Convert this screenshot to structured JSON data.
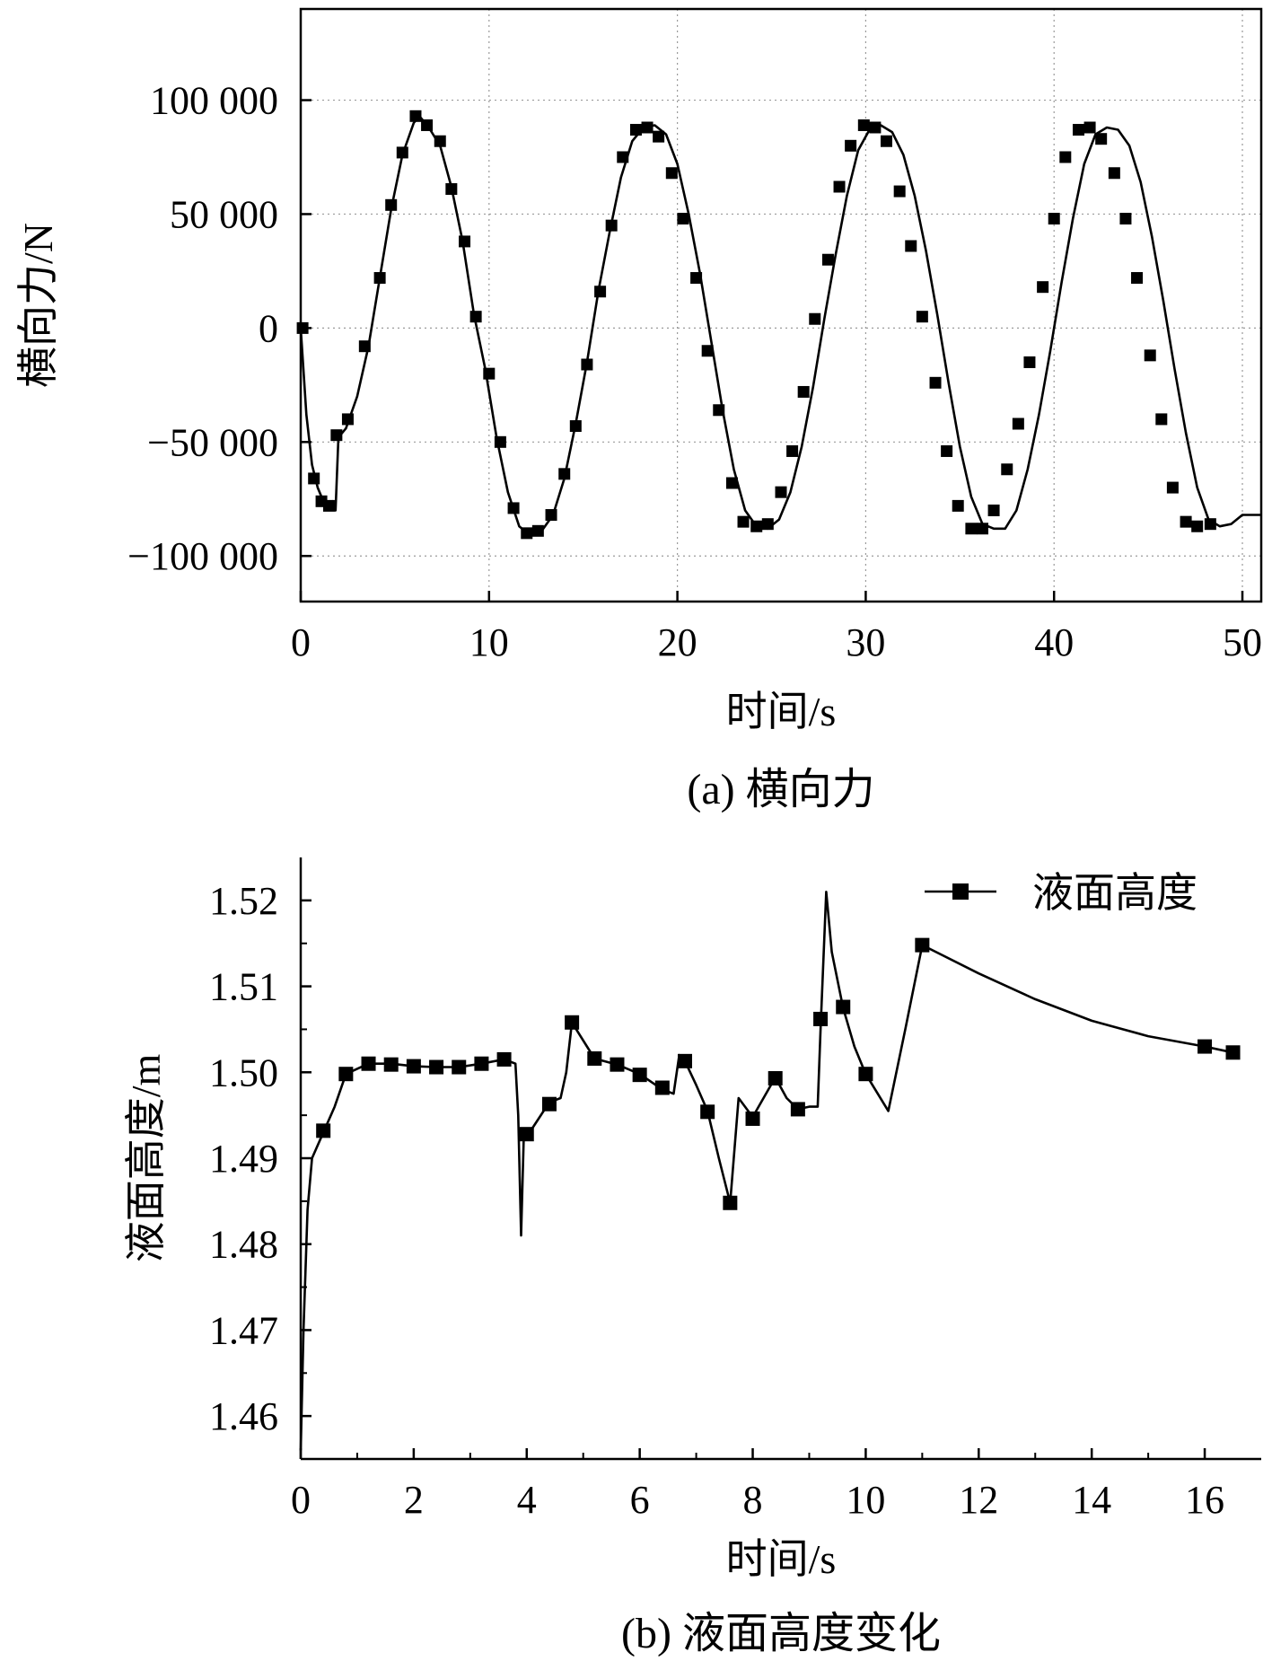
{
  "chart_data": [
    {
      "type": "line",
      "caption": "(a) 横向力",
      "xlabel": "时间/s",
      "ylabel": "横向力/N",
      "xlim": [
        0,
        51
      ],
      "ylim": [
        -120000,
        140000
      ],
      "x_ticks": [
        0,
        10,
        20,
        30,
        40,
        50
      ],
      "x_tick_labels": [
        "0",
        "10",
        "20",
        "30",
        "40",
        "50"
      ],
      "y_ticks": [
        100000,
        50000,
        0,
        -50000,
        -100000
      ],
      "y_tick_labels": [
        "100 000",
        "50 000",
        "0",
        "−50 000",
        "−100 000"
      ],
      "grid": true,
      "series": [
        {
          "color": "#000000",
          "marker": "square",
          "line_points": [
            [
              0,
              0
            ],
            [
              0.3,
              -38000
            ],
            [
              0.6,
              -60000
            ],
            [
              0.9,
              -70000
            ],
            [
              1.2,
              -76000
            ],
            [
              1.5,
              -78000
            ],
            [
              1.7,
              -76000
            ],
            [
              1.85,
              -80000
            ],
            [
              2.0,
              -48000
            ],
            [
              2.4,
              -44000
            ],
            [
              3.0,
              -30000
            ],
            [
              3.6,
              -8000
            ],
            [
              4.2,
              22000
            ],
            [
              4.8,
              52000
            ],
            [
              5.4,
              76000
            ],
            [
              6.0,
              90000
            ],
            [
              6.3,
              93000
            ],
            [
              6.8,
              88000
            ],
            [
              7.4,
              80000
            ],
            [
              8.0,
              62000
            ],
            [
              8.6,
              38000
            ],
            [
              9.2,
              6000
            ],
            [
              9.8,
              -18000
            ],
            [
              10.4,
              -48000
            ],
            [
              11.0,
              -72000
            ],
            [
              11.6,
              -87000
            ],
            [
              12.2,
              -91000
            ],
            [
              12.8,
              -89000
            ],
            [
              13.4,
              -82000
            ],
            [
              14.0,
              -66000
            ],
            [
              14.6,
              -42000
            ],
            [
              15.2,
              -15000
            ],
            [
              15.8,
              16000
            ],
            [
              16.4,
              42000
            ],
            [
              17.0,
              66000
            ],
            [
              17.6,
              82000
            ],
            [
              18.2,
              88000
            ],
            [
              18.8,
              89000
            ],
            [
              19.4,
              85000
            ],
            [
              20.0,
              72000
            ],
            [
              20.6,
              50000
            ],
            [
              21.2,
              24000
            ],
            [
              21.8,
              -6000
            ],
            [
              22.4,
              -36000
            ],
            [
              23.0,
              -62000
            ],
            [
              23.6,
              -80000
            ],
            [
              24.2,
              -87000
            ],
            [
              24.8,
              -88000
            ],
            [
              25.4,
              -84000
            ],
            [
              26.0,
              -72000
            ],
            [
              26.6,
              -52000
            ],
            [
              27.2,
              -26000
            ],
            [
              27.8,
              4000
            ],
            [
              28.4,
              32000
            ],
            [
              29.0,
              58000
            ],
            [
              29.6,
              78000
            ],
            [
              30.2,
              87000
            ],
            [
              30.8,
              89000
            ],
            [
              31.4,
              86000
            ],
            [
              32.0,
              76000
            ],
            [
              32.6,
              58000
            ],
            [
              33.2,
              34000
            ],
            [
              33.8,
              6000
            ],
            [
              34.4,
              -24000
            ],
            [
              35.0,
              -52000
            ],
            [
              35.6,
              -74000
            ],
            [
              36.2,
              -86000
            ],
            [
              36.8,
              -88000
            ],
            [
              37.4,
              -88000
            ],
            [
              38.0,
              -80000
            ],
            [
              38.6,
              -62000
            ],
            [
              39.2,
              -38000
            ],
            [
              39.8,
              -10000
            ],
            [
              40.4,
              20000
            ],
            [
              41.0,
              48000
            ],
            [
              41.6,
              72000
            ],
            [
              42.2,
              85000
            ],
            [
              42.8,
              88000
            ],
            [
              43.4,
              87000
            ],
            [
              44.0,
              80000
            ],
            [
              44.6,
              64000
            ],
            [
              45.2,
              40000
            ],
            [
              45.8,
              12000
            ],
            [
              46.4,
              -18000
            ],
            [
              47.0,
              -46000
            ],
            [
              47.6,
              -70000
            ],
            [
              48.2,
              -84000
            ],
            [
              48.8,
              -87000
            ],
            [
              49.4,
              -86000
            ],
            [
              50.0,
              -82000
            ],
            [
              51.0,
              -82000
            ]
          ],
          "marker_points": [
            [
              0.1,
              0
            ],
            [
              0.7,
              -66000
            ],
            [
              1.1,
              -76000
            ],
            [
              1.5,
              -78000
            ],
            [
              1.9,
              -47000
            ],
            [
              2.5,
              -40000
            ],
            [
              3.4,
              -8000
            ],
            [
              4.2,
              22000
            ],
            [
              4.8,
              54000
            ],
            [
              5.4,
              77000
            ],
            [
              6.1,
              93000
            ],
            [
              6.7,
              89000
            ],
            [
              7.4,
              82000
            ],
            [
              8.0,
              61000
            ],
            [
              8.7,
              38000
            ],
            [
              9.3,
              5000
            ],
            [
              10.0,
              -20000
            ],
            [
              10.6,
              -50000
            ],
            [
              11.3,
              -79000
            ],
            [
              12.0,
              -90000
            ],
            [
              12.6,
              -89000
            ],
            [
              13.3,
              -82000
            ],
            [
              14.0,
              -64000
            ],
            [
              14.6,
              -43000
            ],
            [
              15.2,
              -16000
            ],
            [
              15.9,
              16000
            ],
            [
              16.5,
              45000
            ],
            [
              17.1,
              75000
            ],
            [
              17.8,
              87000
            ],
            [
              18.4,
              88000
            ],
            [
              19.0,
              84000
            ],
            [
              19.7,
              68000
            ],
            [
              20.3,
              48000
            ],
            [
              21.0,
              22000
            ],
            [
              21.6,
              -10000
            ],
            [
              22.2,
              -36000
            ],
            [
              22.9,
              -68000
            ],
            [
              23.5,
              -85000
            ],
            [
              24.2,
              -87000
            ],
            [
              24.8,
              -86000
            ],
            [
              25.5,
              -72000
            ],
            [
              26.1,
              -54000
            ],
            [
              26.7,
              -28000
            ],
            [
              27.3,
              4000
            ],
            [
              28.0,
              30000
            ],
            [
              28.6,
              62000
            ],
            [
              29.2,
              80000
            ],
            [
              29.9,
              89000
            ],
            [
              30.5,
              88000
            ],
            [
              31.1,
              82000
            ],
            [
              31.8,
              60000
            ],
            [
              32.4,
              36000
            ],
            [
              33.0,
              5000
            ],
            [
              33.7,
              -24000
            ],
            [
              34.3,
              -54000
            ],
            [
              34.9,
              -78000
            ],
            [
              35.6,
              -88000
            ],
            [
              36.2,
              -88000
            ],
            [
              36.8,
              -80000
            ],
            [
              37.5,
              -62000
            ],
            [
              38.1,
              -42000
            ],
            [
              38.7,
              -15000
            ],
            [
              39.4,
              18000
            ],
            [
              40.0,
              48000
            ],
            [
              40.6,
              75000
            ],
            [
              41.3,
              87000
            ],
            [
              41.9,
              88000
            ],
            [
              42.5,
              83000
            ],
            [
              43.2,
              68000
            ],
            [
              43.8,
              48000
            ],
            [
              44.4,
              22000
            ],
            [
              45.1,
              -12000
            ],
            [
              45.7,
              -40000
            ],
            [
              46.3,
              -70000
            ],
            [
              47.0,
              -85000
            ],
            [
              47.6,
              -87000
            ],
            [
              48.3,
              -86000
            ]
          ]
        }
      ]
    },
    {
      "type": "line",
      "caption": "(b) 液面高度变化",
      "xlabel": "时间/s",
      "ylabel": "液面高度/m",
      "xlim": [
        0,
        17
      ],
      "ylim": [
        1.455,
        1.525
      ],
      "x_ticks": [
        0,
        2,
        4,
        6,
        8,
        10,
        12,
        14,
        16
      ],
      "x_tick_labels": [
        "0",
        "2",
        "4",
        "6",
        "8",
        "10",
        "12",
        "14",
        "16"
      ],
      "y_ticks": [
        1.52,
        1.51,
        1.5,
        1.49,
        1.48,
        1.47,
        1.46
      ],
      "y_tick_labels": [
        "1.52",
        "1.51",
        "1.50",
        "1.49",
        "1.48",
        "1.47",
        "1.46"
      ],
      "grid": false,
      "legend": {
        "label": "液面高度",
        "position": "top-right"
      },
      "series": [
        {
          "name": "液面高度",
          "color": "#000000",
          "marker": "square",
          "line_points": [
            [
              0.0,
              1.456
            ],
            [
              0.05,
              1.47
            ],
            [
              0.12,
              1.484
            ],
            [
              0.2,
              1.49
            ],
            [
              0.4,
              1.493
            ],
            [
              0.6,
              1.496
            ],
            [
              0.8,
              1.4998
            ],
            [
              1.2,
              1.501
            ],
            [
              1.6,
              1.501
            ],
            [
              2.0,
              1.5007
            ],
            [
              2.4,
              1.5006
            ],
            [
              2.8,
              1.5006
            ],
            [
              3.2,
              1.501
            ],
            [
              3.6,
              1.5015
            ],
            [
              3.8,
              1.501
            ],
            [
              3.85,
              1.495
            ],
            [
              3.9,
              1.481
            ],
            [
              3.95,
              1.493
            ],
            [
              4.1,
              1.4935
            ],
            [
              4.4,
              1.4965
            ],
            [
              4.6,
              1.497
            ],
            [
              4.7,
              1.5
            ],
            [
              4.8,
              1.5058
            ],
            [
              5.2,
              1.5016
            ],
            [
              5.6,
              1.5009
            ],
            [
              6.0,
              1.4998
            ],
            [
              6.4,
              1.498
            ],
            [
              6.6,
              1.4975
            ],
            [
              6.7,
              1.502
            ],
            [
              6.8,
              1.5013
            ],
            [
              7.0,
              1.4985
            ],
            [
              7.2,
              1.4955
            ],
            [
              7.4,
              1.49
            ],
            [
              7.6,
              1.4848
            ],
            [
              7.75,
              1.497
            ],
            [
              8.0,
              1.4948
            ],
            [
              8.4,
              1.4994
            ],
            [
              8.6,
              1.497
            ],
            [
              8.8,
              1.4957
            ],
            [
              9.0,
              1.496
            ],
            [
              9.15,
              1.496
            ],
            [
              9.2,
              1.505
            ],
            [
              9.3,
              1.521
            ],
            [
              9.4,
              1.514
            ],
            [
              9.6,
              1.5075
            ],
            [
              9.8,
              1.503
            ],
            [
              10.0,
              1.4998
            ],
            [
              10.4,
              1.4955
            ],
            [
              10.7,
              1.505
            ],
            [
              11.0,
              1.5148
            ],
            [
              12.0,
              1.5115
            ],
            [
              13.0,
              1.5085
            ],
            [
              14.0,
              1.506
            ],
            [
              15.0,
              1.5042
            ],
            [
              16.0,
              1.503
            ],
            [
              16.5,
              1.5023
            ]
          ],
          "marker_points": [
            [
              0.4,
              1.4932
            ],
            [
              0.8,
              1.4998
            ],
            [
              1.2,
              1.501
            ],
            [
              1.6,
              1.5009
            ],
            [
              2.0,
              1.5007
            ],
            [
              2.4,
              1.5006
            ],
            [
              2.8,
              1.5006
            ],
            [
              3.2,
              1.501
            ],
            [
              3.6,
              1.5015
            ],
            [
              4.0,
              1.4928
            ],
            [
              4.4,
              1.4963
            ],
            [
              4.8,
              1.5058
            ],
            [
              5.2,
              1.5016
            ],
            [
              5.6,
              1.5009
            ],
            [
              6.0,
              1.4997
            ],
            [
              6.4,
              1.4982
            ],
            [
              6.8,
              1.5013
            ],
            [
              7.2,
              1.4954
            ],
            [
              7.6,
              1.4848
            ],
            [
              8.0,
              1.4946
            ],
            [
              8.4,
              1.4993
            ],
            [
              8.8,
              1.4957
            ],
            [
              9.2,
              1.5062
            ],
            [
              9.6,
              1.5076
            ],
            [
              10.0,
              1.4998
            ],
            [
              11.0,
              1.5148
            ],
            [
              16.0,
              1.503
            ],
            [
              16.5,
              1.5023
            ]
          ]
        }
      ]
    }
  ]
}
